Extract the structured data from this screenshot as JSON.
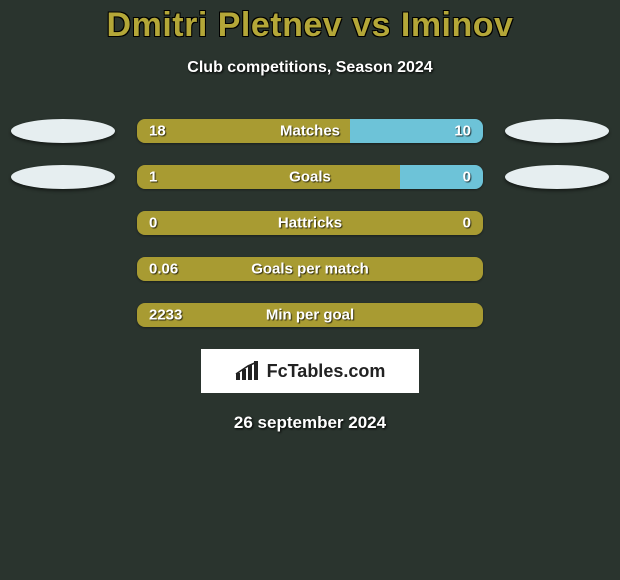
{
  "title": "Dmitri Pletnev vs Iminov",
  "subtitle": "Club competitions, Season 2024",
  "colors": {
    "left": "#a89b32",
    "right": "#6dc3d8",
    "badge_left": "#e6eef0",
    "badge_right": "#e6eef0",
    "background": "#2a342e"
  },
  "stats": [
    {
      "label": "Matches",
      "left_value": "18",
      "right_value": "10",
      "left_ratio": 0.615,
      "right_ratio": 0.385,
      "show_badges": true
    },
    {
      "label": "Goals",
      "left_value": "1",
      "right_value": "0",
      "left_ratio": 0.76,
      "right_ratio": 0.24,
      "show_badges": true
    },
    {
      "label": "Hattricks",
      "left_value": "0",
      "right_value": "0",
      "left_ratio": 1.0,
      "right_ratio": 0.0,
      "show_badges": false
    },
    {
      "label": "Goals per match",
      "left_value": "0.06",
      "right_value": "",
      "left_ratio": 1.0,
      "right_ratio": 0.0,
      "show_badges": false
    },
    {
      "label": "Min per goal",
      "left_value": "2233",
      "right_value": "",
      "left_ratio": 1.0,
      "right_ratio": 0.0,
      "show_badges": false
    }
  ],
  "brand": "FcTables.com",
  "date": "26 september 2024"
}
